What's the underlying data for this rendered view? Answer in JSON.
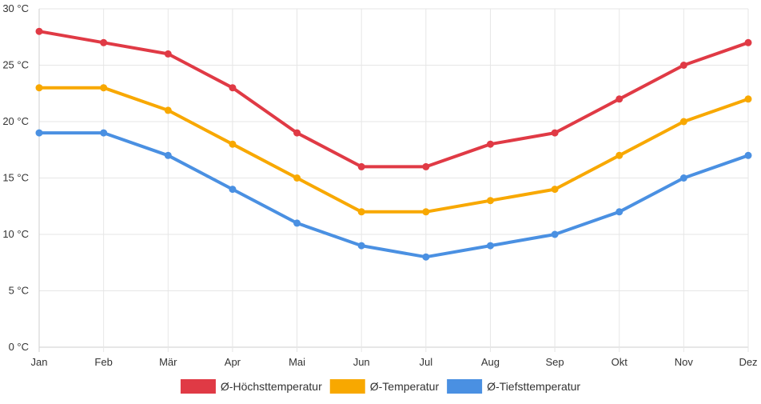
{
  "chart_data": {
    "type": "line",
    "title": "",
    "xlabel": "",
    "ylabel": "",
    "categories": [
      "Jan",
      "Feb",
      "Mär",
      "Apr",
      "Mai",
      "Jun",
      "Jul",
      "Aug",
      "Sep",
      "Okt",
      "Nov",
      "Dez"
    ],
    "ylim": [
      0,
      30
    ],
    "yticks": [
      0,
      5,
      10,
      15,
      20,
      25,
      30
    ],
    "ytick_unit": " °C",
    "grid": true,
    "legend_position": "bottom-center",
    "series": [
      {
        "name": "Ø-Höchsttemperatur",
        "color": "#e03a45",
        "values": [
          28,
          27,
          26,
          23,
          19,
          16,
          16,
          18,
          19,
          22,
          25,
          27
        ]
      },
      {
        "name": "Ø-Temperatur",
        "color": "#f8a800",
        "values": [
          23,
          23,
          21,
          18,
          15,
          12,
          12,
          13,
          14,
          17,
          20,
          22
        ]
      },
      {
        "name": "Ø-Tiefsttemperatur",
        "color": "#4a90e2",
        "values": [
          19,
          19,
          17,
          14,
          11,
          9,
          8,
          9,
          10,
          12,
          15,
          17
        ]
      }
    ]
  }
}
